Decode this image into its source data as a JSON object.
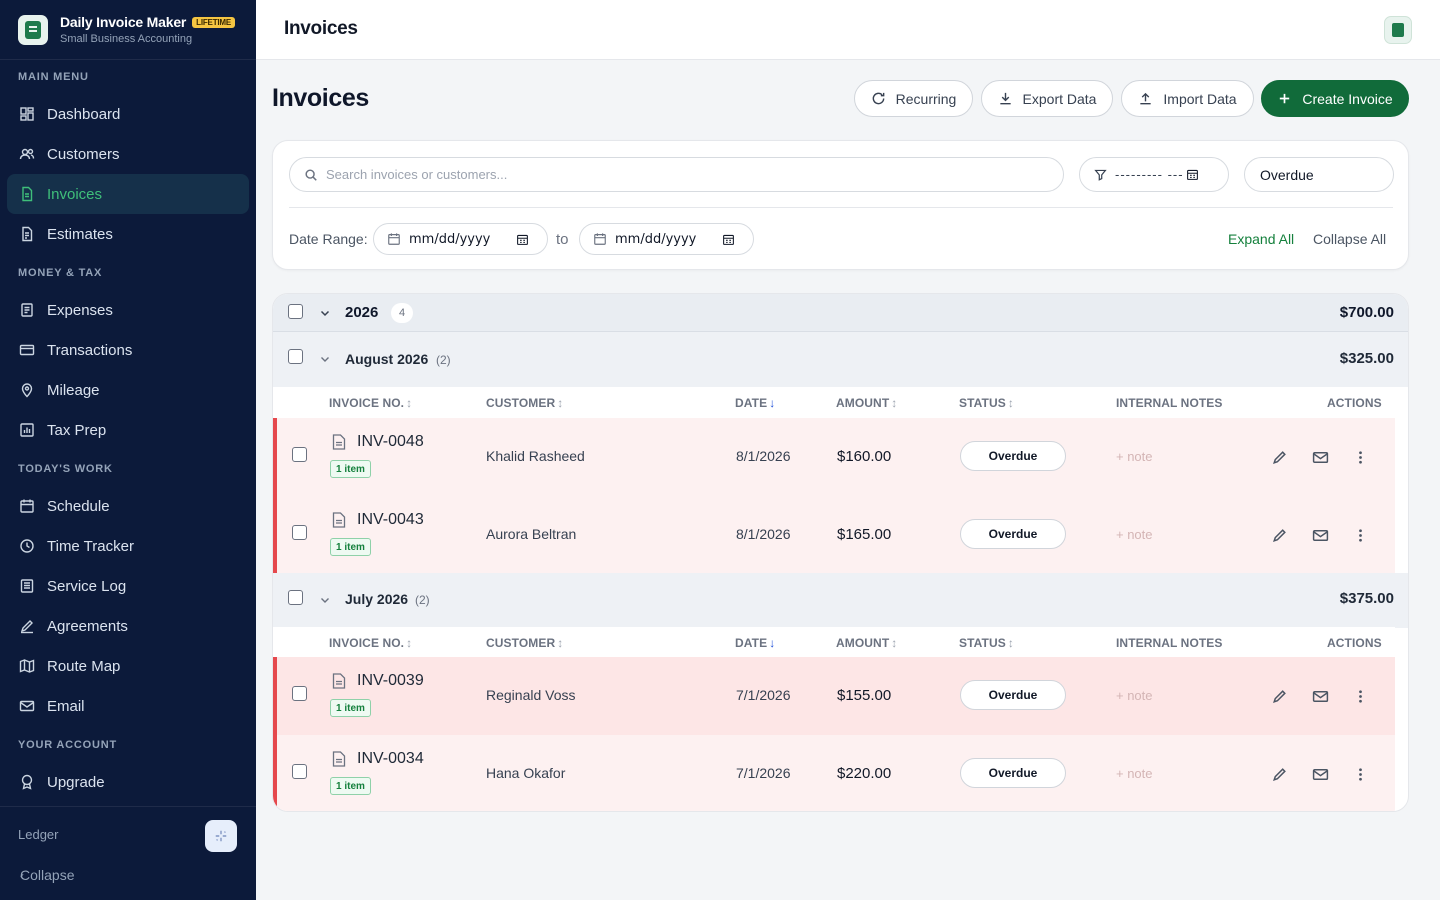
{
  "brand": {
    "name": "Daily Invoice Maker",
    "badge": "LIFETIME",
    "subtitle": "Small Business Accounting"
  },
  "sidebar": {
    "sections": [
      {
        "label": "MAIN MENU",
        "items": [
          {
            "label": "Dashboard",
            "icon": "dashboard-icon"
          },
          {
            "label": "Customers",
            "icon": "users-icon"
          },
          {
            "label": "Invoices",
            "icon": "invoice-icon",
            "active": true
          },
          {
            "label": "Estimates",
            "icon": "estimate-icon"
          }
        ]
      },
      {
        "label": "MONEY & TAX",
        "items": [
          {
            "label": "Expenses",
            "icon": "receipt-icon"
          },
          {
            "label": "Transactions",
            "icon": "card-icon"
          },
          {
            "label": "Mileage",
            "icon": "location-pin-icon"
          },
          {
            "label": "Tax Prep",
            "icon": "chart-icon"
          }
        ]
      },
      {
        "label": "TODAY'S WORK",
        "items": [
          {
            "label": "Schedule",
            "icon": "calendar-icon"
          },
          {
            "label": "Time Tracker",
            "icon": "clock-icon"
          },
          {
            "label": "Service Log",
            "icon": "log-icon"
          },
          {
            "label": "Agreements",
            "icon": "signature-icon"
          },
          {
            "label": "Route Map",
            "icon": "map-icon"
          },
          {
            "label": "Email",
            "icon": "mail-icon"
          }
        ]
      },
      {
        "label": "YOUR ACCOUNT",
        "items": [
          {
            "label": "Upgrade",
            "icon": "award-icon"
          }
        ]
      }
    ],
    "footer": {
      "ledger": "Ledger",
      "collapse": "Collapse"
    }
  },
  "topbar": {
    "title": "Invoices"
  },
  "page": {
    "title": "Invoices",
    "buttons": {
      "recurring": "Recurring",
      "export": "Export Data",
      "import": "Import Data",
      "create": "Create Invoice"
    }
  },
  "filters": {
    "search_placeholder": "Search invoices or customers...",
    "date_filter_value": "--------- ---",
    "status_value": "Overdue",
    "date_range_label": "Date Range:",
    "date_from_placeholder": "mm/dd/yyyy",
    "to_label": "to",
    "date_to_placeholder": "mm/dd/yyyy",
    "expand_all": "Expand All",
    "collapse_all": "Collapse All"
  },
  "table": {
    "columns": [
      "INVOICE NO.",
      "CUSTOMER",
      "DATE",
      "AMOUNT",
      "STATUS",
      "INTERNAL NOTES",
      "ACTIONS"
    ],
    "year": {
      "label": "2026",
      "count": "4",
      "total": "$700.00"
    },
    "months": [
      {
        "label": "August 2026",
        "count": "(2)",
        "total": "$325.00",
        "rows": [
          {
            "invoice": "INV-0048",
            "items": "1 item",
            "customer": "Khalid Rasheed",
            "date": "8/1/2026",
            "amount": "$160.00",
            "status": "Overdue",
            "note": "+ note"
          },
          {
            "invoice": "INV-0043",
            "items": "1 item",
            "customer": "Aurora Beltran",
            "date": "8/1/2026",
            "amount": "$165.00",
            "status": "Overdue",
            "note": "+ note"
          }
        ]
      },
      {
        "label": "July 2026",
        "count": "(2)",
        "total": "$375.00",
        "rows": [
          {
            "invoice": "INV-0039",
            "items": "1 item",
            "customer": "Reginald Voss",
            "date": "7/1/2026",
            "amount": "$155.00",
            "status": "Overdue",
            "note": "+ note"
          },
          {
            "invoice": "INV-0034",
            "items": "1 item",
            "customer": "Hana Okafor",
            "date": "7/1/2026",
            "amount": "$220.00",
            "status": "Overdue",
            "note": "+ note"
          }
        ]
      }
    ]
  },
  "colors": {
    "sidebar_bg": "#0c1a3a",
    "accent_green": "#116b3a",
    "overdue_red": "#e5484d"
  }
}
